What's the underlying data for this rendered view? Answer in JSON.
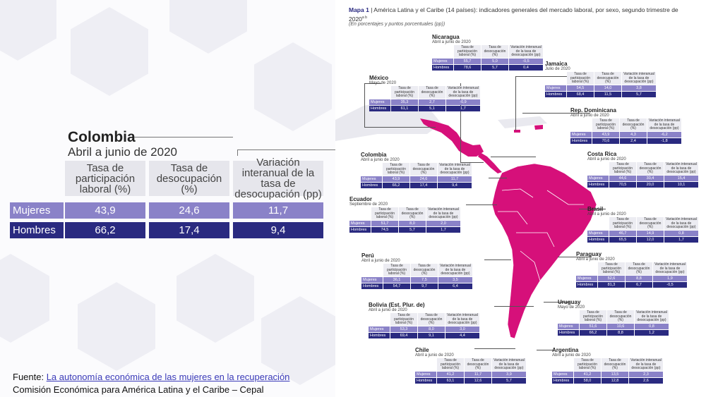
{
  "zoom": {
    "country": "Colombia",
    "period": "Abril a junio de 2020",
    "headers": [
      "Tasa de participación laboral (%)",
      "Tasa de desocupación (%)",
      "Variación interanual de la tasa de desocupación (pp)"
    ],
    "rows": [
      {
        "label": "Mujeres",
        "values": [
          "43,9",
          "24,6",
          "11,7"
        ]
      },
      {
        "label": "Hombres",
        "values": [
          "66,2",
          "17,4",
          "9,4"
        ]
      }
    ]
  },
  "source": {
    "prefix": "Fuente: ",
    "link": "La autonomía económica de las mujeres en la recuperación",
    "org": "Comisión Económica para América Latina y el Caribe – Cepal"
  },
  "map": {
    "label": "Mapa 1",
    "title": "América Latina y el Caribe (14 países): indicadores generales del mercado laboral, por sexo, segundo trimestre de 2020",
    "title_note": "a b",
    "subtitle": "(En porcentajes y puntos porcentuales (pp))",
    "col_headers": [
      "Tasa de participación laboral (%)",
      "Tasa de desocupación (%)",
      "Variación interanual de la tasa de desocupación (pp)"
    ],
    "row_labels": [
      "Mujeres",
      "Hombres"
    ],
    "countries": [
      {
        "name": "Nicaragua",
        "period": "Abril a junio de 2020",
        "mujeres": [
          "55,7",
          "5,0",
          "-0,5"
        ],
        "hombres": [
          "78,6",
          "5,7",
          "0,4"
        ]
      },
      {
        "name": "México",
        "period": "Mayo de 2020",
        "mujeres": [
          "35,3",
          "2,7",
          "-0,9"
        ],
        "hombres": [
          "61,1",
          "5,1",
          "1,7"
        ]
      },
      {
        "name": "Jamaica",
        "period": "Julio de 2020",
        "mujeres": [
          "54,5",
          "14,0",
          "3,8"
        ],
        "hombres": [
          "68,4",
          "11,5",
          "5,7"
        ]
      },
      {
        "name": "Rep. Dominicana",
        "period": "Abril a junio de 2020",
        "mujeres": [
          "43,9",
          "4,3",
          "-6,2"
        ],
        "hombres": [
          "70,6",
          "2,4",
          "-1,8"
        ]
      },
      {
        "name": "Colombia",
        "period": "Abril a junio de 2020",
        "mujeres": [
          "43,9",
          "24,6",
          "11,7"
        ],
        "hombres": [
          "66,2",
          "17,4",
          "9,4"
        ]
      },
      {
        "name": "Costa Rica",
        "period": "Abril a junio de 2020",
        "mujeres": [
          "44,6",
          "30,4",
          "15,4"
        ],
        "hombres": [
          "70,5",
          "20,0",
          "10,1"
        ]
      },
      {
        "name": "Ecuador",
        "period": "Septiembre de 2020",
        "mujeres": [
          "51,7",
          "8,0",
          "2,0"
        ],
        "hombres": [
          "74,5",
          "5,7",
          "1,7"
        ]
      },
      {
        "name": "Brasil",
        "period": "Abril a junio de 2020",
        "mujeres": [
          "46,7",
          "14,9",
          "0,8"
        ],
        "hombres": [
          "65,5",
          "12,0",
          "1,7"
        ]
      },
      {
        "name": "Perú",
        "period": "Abril a junio de 2020",
        "mujeres": [
          "36,1",
          "7,5",
          "3,5"
        ],
        "hombres": [
          "54,7",
          "9,7",
          "6,4"
        ]
      },
      {
        "name": "Paraguay",
        "period": "Abril a junio de 2020",
        "mujeres": [
          "52,6",
          "8,8",
          "1,9"
        ],
        "hombres": [
          "81,3",
          "6,7",
          "-0,5"
        ]
      },
      {
        "name": "Bolivia (Est. Plur. de)",
        "period": "Abril a junio de 2020",
        "mujeres": [
          "53,3",
          "8,0",
          "3,0"
        ],
        "hombres": [
          "69,4",
          "9,1",
          "4,4"
        ]
      },
      {
        "name": "Uruguay",
        "period": "Mayo de 2020",
        "mujeres": [
          "51,6",
          "10,6",
          "0,8"
        ],
        "hombres": [
          "66,2",
          "8,8",
          "1,2"
        ]
      },
      {
        "name": "Chile",
        "period": "Abril a junio de 2020",
        "mujeres": [
          "41,2",
          "11,7",
          "3,9"
        ],
        "hombres": [
          "63,1",
          "12,6",
          "5,7"
        ]
      },
      {
        "name": "Argentina",
        "period": "Abril a junio de 2020",
        "mujeres": [
          "41,2",
          "13,5",
          "2,3"
        ],
        "hombres": [
          "58,0",
          "12,8",
          "2,6"
        ]
      }
    ]
  },
  "colors": {
    "mujeres": "#8a82c8",
    "hombres": "#2a2a80",
    "map_fill": "#d6107a",
    "map_bg": "#e9e9ef"
  }
}
